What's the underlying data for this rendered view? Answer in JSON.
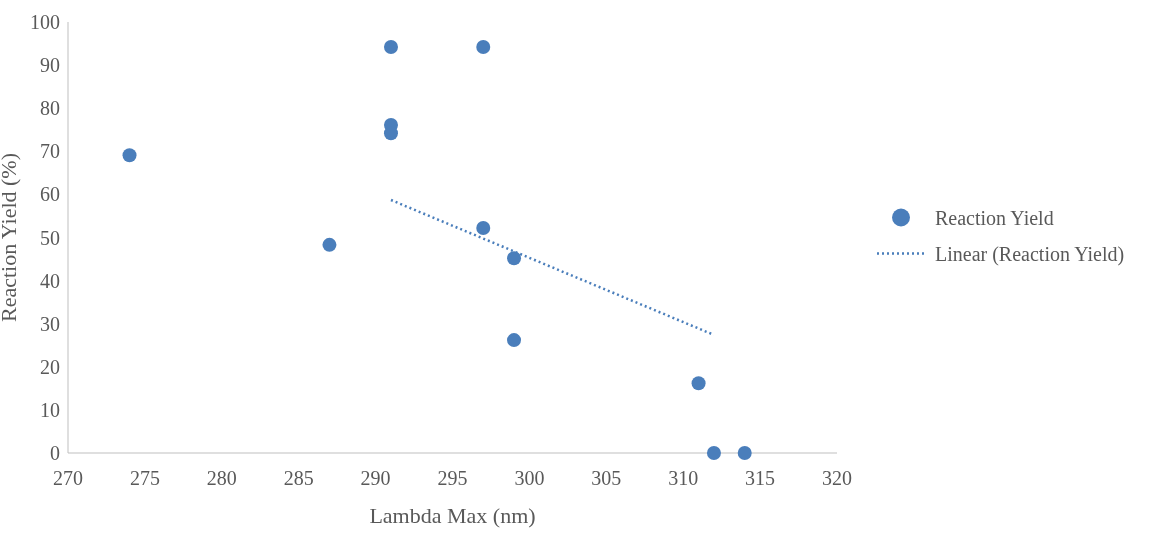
{
  "chart_data": {
    "type": "scatter",
    "xlabel": "Lambda Max (nm)",
    "ylabel": "Reaction Yield (%)",
    "xlim": [
      270,
      320
    ],
    "xticks": [
      270,
      275,
      280,
      285,
      290,
      295,
      300,
      305,
      310,
      315,
      320
    ],
    "ylim": [
      0,
      100
    ],
    "yticks": [
      0,
      10,
      20,
      30,
      40,
      50,
      60,
      70,
      80,
      90,
      100
    ],
    "grid": false,
    "legend": "right",
    "series": [
      {
        "name": "Reaction Yield",
        "color": "#4a7ebb",
        "marker": "circle",
        "x": [
          274,
          287,
          291,
          291,
          291,
          297,
          297,
          299,
          299,
          311,
          312,
          314
        ],
        "values": [
          69.1,
          48.3,
          94.2,
          76.1,
          74.2,
          94.2,
          52.2,
          45.2,
          26.2,
          16.2,
          0,
          0
        ]
      },
      {
        "name": "Linear (Reaction Yield)",
        "type": "line",
        "color": "#4a7ebb",
        "marker": "none",
        "line_style": "dotted",
        "x": [
          291,
          312
        ],
        "values": [
          58.7,
          27.4
        ]
      }
    ]
  }
}
